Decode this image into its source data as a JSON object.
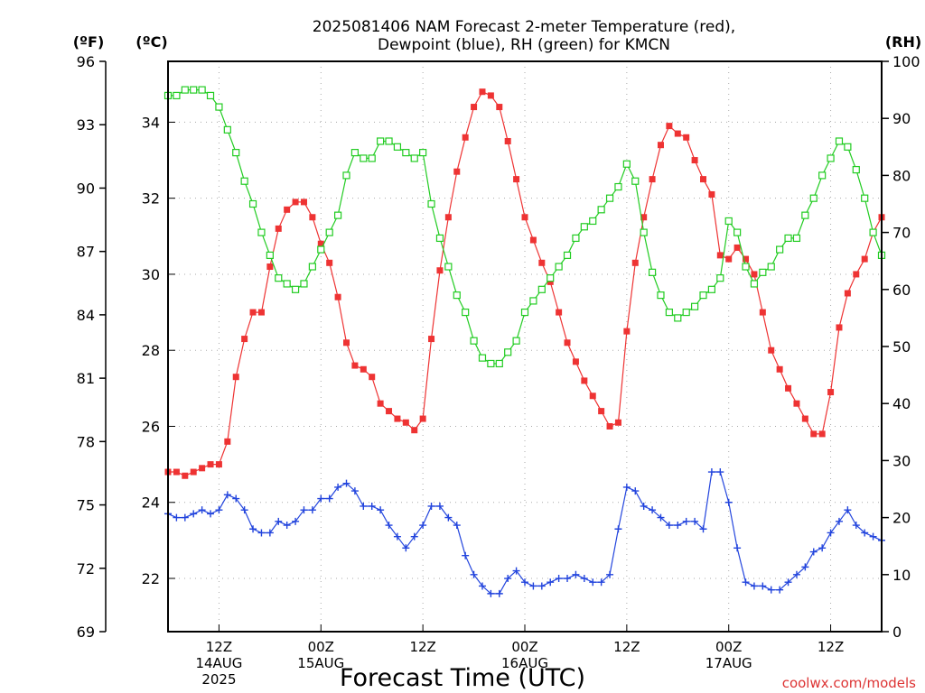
{
  "title_line1": "2025081406 NAM Forecast 2-meter Temperature (red),",
  "title_line2": "Dewpoint (blue), RH (green) for KMCN",
  "xlabel": "Forecast Time (UTC)",
  "watermark": "coolwx.com/models",
  "unit_f": "(ºF)",
  "unit_c": "(ºC)",
  "unit_rh": "(RH)",
  "colors": {
    "temperature": "#ee3333",
    "dewpoint": "#2244dd",
    "rh": "#22cc22",
    "grid": "#aaaaaa",
    "watermark": "#dd3333"
  },
  "chart_data": {
    "type": "line",
    "title": "2025081406 NAM Forecast 2-meter Temperature (red), Dewpoint (blue), RH (green) for KMCN",
    "xlabel": "Forecast Time (UTC)",
    "x_unit": "hours from 2025-08-14 06Z (data hour 0 = chart left edge)",
    "xlim": [
      0,
      84
    ],
    "grid": true,
    "x_ticks": [
      {
        "hour": 6,
        "lines": [
          "12Z",
          "14AUG",
          "2025"
        ]
      },
      {
        "hour": 18,
        "lines": [
          "00Z",
          "15AUG"
        ]
      },
      {
        "hour": 30,
        "lines": [
          "12Z"
        ]
      },
      {
        "hour": 42,
        "lines": [
          "00Z",
          "16AUG"
        ]
      },
      {
        "hour": 54,
        "lines": [
          "12Z"
        ]
      },
      {
        "hour": 66,
        "lines": [
          "00Z",
          "17AUG"
        ]
      },
      {
        "hour": 78,
        "lines": [
          "12Z"
        ]
      }
    ],
    "axes": {
      "celsius": {
        "range": [
          20.6,
          35.6
        ],
        "ticks": [
          "22",
          "24",
          "26",
          "28",
          "30",
          "32",
          "34"
        ]
      },
      "fahrenheit": {
        "range": [
          69,
          96
        ],
        "ticks": [
          "69",
          "72",
          "75",
          "78",
          "81",
          "84",
          "87",
          "90",
          "93",
          "96"
        ]
      },
      "rh": {
        "range": [
          0,
          100
        ],
        "ticks": [
          "0",
          "10",
          "20",
          "30",
          "40",
          "50",
          "60",
          "70",
          "80",
          "90",
          "100"
        ]
      }
    },
    "series": [
      {
        "key": "temperature",
        "axis": "celsius",
        "marker": "filled-square",
        "x": [
          0,
          1,
          2,
          3,
          4,
          5,
          6,
          7,
          8,
          9,
          10,
          11,
          12,
          13,
          14,
          15,
          16,
          17,
          18,
          19,
          20,
          21,
          22,
          23,
          24,
          25,
          26,
          27,
          28,
          29,
          30,
          31,
          32,
          33,
          34,
          35,
          36,
          37,
          38,
          39,
          40,
          41,
          42,
          43,
          44,
          45,
          46,
          47,
          48,
          49,
          50,
          51,
          52,
          53,
          54,
          55,
          56,
          57,
          58,
          59,
          60,
          61,
          62,
          63,
          64,
          65,
          66,
          67,
          68,
          69,
          70,
          71,
          72,
          73,
          74,
          75,
          76,
          77,
          78,
          79,
          80,
          81,
          82,
          83,
          84
        ],
        "values": [
          24.8,
          24.8,
          24.7,
          24.8,
          24.9,
          25.0,
          25.0,
          25.6,
          27.3,
          28.3,
          29.0,
          29.0,
          30.2,
          31.2,
          31.7,
          31.9,
          31.9,
          31.5,
          30.8,
          30.3,
          29.4,
          28.2,
          27.6,
          27.5,
          27.3,
          26.6,
          26.4,
          26.2,
          26.1,
          25.9,
          26.2,
          28.3,
          30.1,
          31.5,
          32.7,
          33.6,
          34.4,
          34.8,
          34.7,
          34.4,
          33.5,
          32.5,
          31.5,
          30.9,
          30.3,
          29.8,
          29.0,
          28.2,
          27.7,
          27.2,
          26.8,
          26.4,
          26.0,
          26.1,
          28.5,
          30.3,
          31.5,
          32.5,
          33.4,
          33.9,
          33.7,
          33.6,
          33.0,
          32.5,
          32.1,
          30.5,
          30.4,
          30.7,
          30.4,
          30.0,
          29.0,
          28.0,
          27.5,
          27.0,
          26.6,
          26.2,
          25.8,
          25.8,
          26.9,
          28.6,
          29.5,
          30.0,
          30.4,
          31.1,
          31.5
        ]
      },
      {
        "key": "dewpoint",
        "axis": "celsius",
        "marker": "plus",
        "x": [
          0,
          1,
          2,
          3,
          4,
          5,
          6,
          7,
          8,
          9,
          10,
          11,
          12,
          13,
          14,
          15,
          16,
          17,
          18,
          19,
          20,
          21,
          22,
          23,
          24,
          25,
          26,
          27,
          28,
          29,
          30,
          31,
          32,
          33,
          34,
          35,
          36,
          37,
          38,
          39,
          40,
          41,
          42,
          43,
          44,
          45,
          46,
          47,
          48,
          49,
          50,
          51,
          52,
          53,
          54,
          55,
          56,
          57,
          58,
          59,
          60,
          61,
          62,
          63,
          64,
          65,
          66,
          67,
          68,
          69,
          70,
          71,
          72,
          73,
          74,
          75,
          76,
          77,
          78,
          79,
          80,
          81,
          82,
          83,
          84
        ],
        "values": [
          23.7,
          23.6,
          23.6,
          23.7,
          23.8,
          23.7,
          23.8,
          24.2,
          24.1,
          23.8,
          23.3,
          23.2,
          23.2,
          23.5,
          23.4,
          23.5,
          23.8,
          23.8,
          24.1,
          24.1,
          24.4,
          24.5,
          24.3,
          23.9,
          23.9,
          23.8,
          23.4,
          23.1,
          22.8,
          23.1,
          23.4,
          23.9,
          23.9,
          23.6,
          23.4,
          22.6,
          22.1,
          21.8,
          21.6,
          21.6,
          22.0,
          22.2,
          21.9,
          21.8,
          21.8,
          21.9,
          22.0,
          22.0,
          22.1,
          22.0,
          21.9,
          21.9,
          22.1,
          23.3,
          24.4,
          24.3,
          23.9,
          23.8,
          23.6,
          23.4,
          23.4,
          23.5,
          23.5,
          23.3,
          24.8,
          24.8,
          24.0,
          22.8,
          21.9,
          21.8,
          21.8,
          21.7,
          21.7,
          21.9,
          22.1,
          22.3,
          22.7,
          22.8,
          23.2,
          23.5,
          23.8,
          23.4,
          23.2,
          23.1,
          23.0
        ]
      },
      {
        "key": "rh",
        "axis": "rh",
        "marker": "open-square",
        "x": [
          0,
          1,
          2,
          3,
          4,
          5,
          6,
          7,
          8,
          9,
          10,
          11,
          12,
          13,
          14,
          15,
          16,
          17,
          18,
          19,
          20,
          21,
          22,
          23,
          24,
          25,
          26,
          27,
          28,
          29,
          30,
          31,
          32,
          33,
          34,
          35,
          36,
          37,
          38,
          39,
          40,
          41,
          42,
          43,
          44,
          45,
          46,
          47,
          48,
          49,
          50,
          51,
          52,
          53,
          54,
          55,
          56,
          57,
          58,
          59,
          60,
          61,
          62,
          63,
          64,
          65,
          66,
          67,
          68,
          69,
          70,
          71,
          72,
          73,
          74,
          75,
          76,
          77,
          78,
          79,
          80,
          81,
          82,
          83,
          84
        ],
        "values": [
          94,
          94,
          95,
          95,
          95,
          94,
          92,
          88,
          84,
          79,
          75,
          70,
          66,
          62,
          61,
          60,
          61,
          64,
          67,
          70,
          73,
          80,
          84,
          83,
          83,
          86,
          86,
          85,
          84,
          83,
          84,
          75,
          69,
          64,
          59,
          56,
          51,
          48,
          47,
          47,
          49,
          51,
          56,
          58,
          60,
          62,
          64,
          66,
          69,
          71,
          72,
          74,
          76,
          78,
          82,
          79,
          70,
          63,
          59,
          56,
          55,
          56,
          57,
          59,
          60,
          62,
          72,
          70,
          64,
          61,
          63,
          64,
          67,
          69,
          69,
          73,
          76,
          80,
          83,
          86,
          85,
          81,
          76,
          70,
          66
        ]
      }
    ]
  }
}
